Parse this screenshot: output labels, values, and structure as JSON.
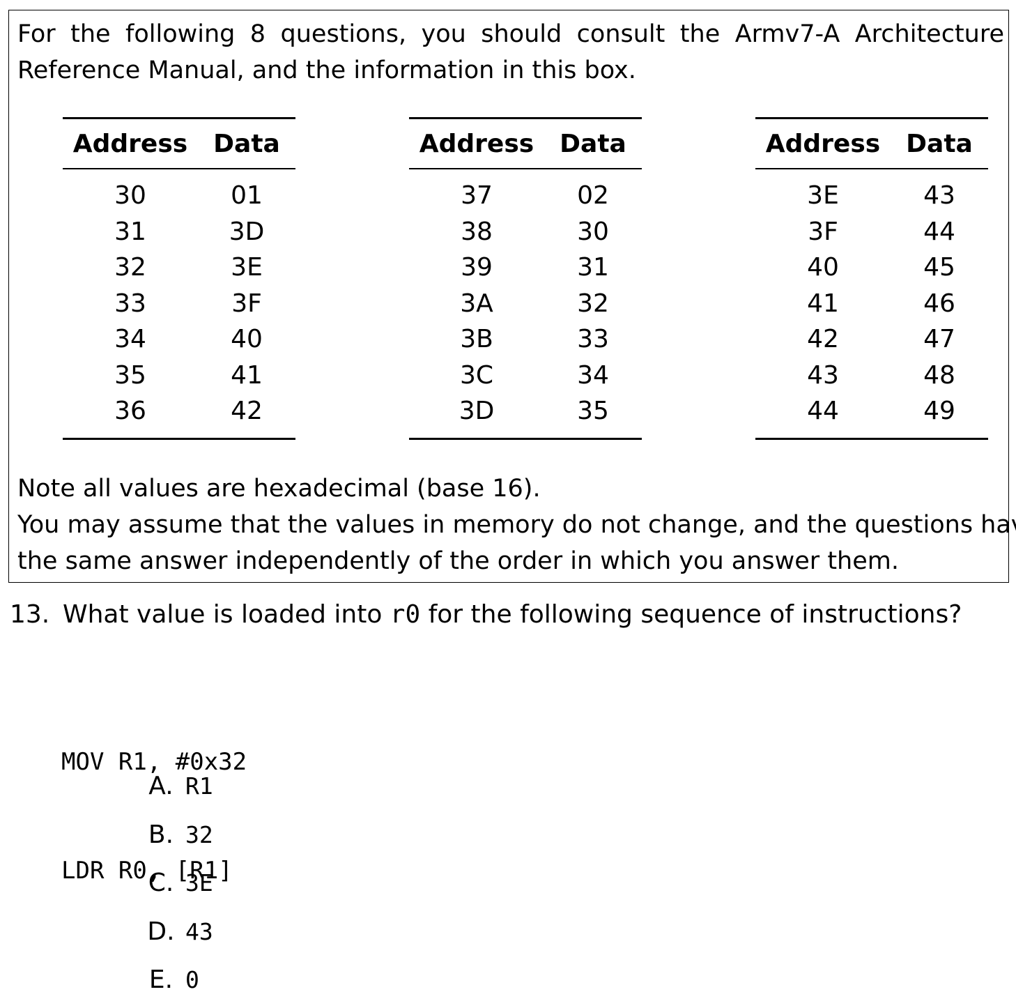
{
  "intro": "For the following 8 questions, you should consult the Armv7-A Architecture Reference Manual, and the information in this box.",
  "tables": [
    {
      "headers": [
        "Address",
        "Data"
      ],
      "rows": [
        [
          "30",
          "01"
        ],
        [
          "31",
          "3D"
        ],
        [
          "32",
          "3E"
        ],
        [
          "33",
          "3F"
        ],
        [
          "34",
          "40"
        ],
        [
          "35",
          "41"
        ],
        [
          "36",
          "42"
        ]
      ]
    },
    {
      "headers": [
        "Address",
        "Data"
      ],
      "rows": [
        [
          "37",
          "02"
        ],
        [
          "38",
          "30"
        ],
        [
          "39",
          "31"
        ],
        [
          "3A",
          "32"
        ],
        [
          "3B",
          "33"
        ],
        [
          "3C",
          "34"
        ],
        [
          "3D",
          "35"
        ]
      ]
    },
    {
      "headers": [
        "Address",
        "Data"
      ],
      "rows": [
        [
          "3E",
          "43"
        ],
        [
          "3F",
          "44"
        ],
        [
          "40",
          "45"
        ],
        [
          "41",
          "46"
        ],
        [
          "42",
          "47"
        ],
        [
          "43",
          "48"
        ],
        [
          "44",
          "49"
        ]
      ]
    }
  ],
  "notes": [
    "Note all values are hexadecimal (base 16).",
    "You may assume that the values in memory do not change, and the questions have",
    "the same answer independently of the order in which you answer them."
  ],
  "question": {
    "number": "13.",
    "text_before": "What value is loaded into ",
    "register": "r0",
    "text_after": " for the following sequence of instructions?",
    "code": [
      "MOV R1, #0x32",
      "LDR R0, [R1]"
    ],
    "options": [
      {
        "letter": "A.",
        "value": "R1"
      },
      {
        "letter": "B.",
        "value": "32"
      },
      {
        "letter": "C.",
        "value": "3E"
      },
      {
        "letter": "D.",
        "value": "43"
      },
      {
        "letter": "E.",
        "value": "0"
      }
    ]
  }
}
